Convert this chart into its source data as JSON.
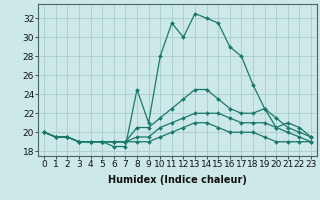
{
  "xlabel": "Humidex (Indice chaleur)",
  "ylabel": "",
  "background_color": "#cce8e8",
  "grid_color": "#aacccc",
  "line_color": "#1a7a6a",
  "x": [
    0,
    1,
    2,
    3,
    4,
    5,
    6,
    7,
    8,
    9,
    10,
    11,
    12,
    13,
    14,
    15,
    16,
    17,
    18,
    19,
    20,
    21,
    22,
    23
  ],
  "series_max": [
    20.0,
    19.5,
    19.5,
    19.0,
    19.0,
    19.0,
    18.5,
    18.5,
    24.5,
    21.0,
    28.0,
    31.5,
    30.0,
    32.5,
    32.0,
    31.5,
    29.0,
    28.0,
    25.0,
    22.5,
    20.5,
    21.0,
    20.5,
    19.5
  ],
  "series_high": [
    20.0,
    19.5,
    19.5,
    19.0,
    19.0,
    19.0,
    19.0,
    19.0,
    20.5,
    20.5,
    21.5,
    22.5,
    23.5,
    24.5,
    24.5,
    23.5,
    22.5,
    22.0,
    22.0,
    22.5,
    21.5,
    20.5,
    20.0,
    19.5
  ],
  "series_mid": [
    20.0,
    19.5,
    19.5,
    19.0,
    19.0,
    19.0,
    19.0,
    19.0,
    19.5,
    19.5,
    20.5,
    21.0,
    21.5,
    22.0,
    22.0,
    22.0,
    21.5,
    21.0,
    21.0,
    21.0,
    20.5,
    20.0,
    19.5,
    19.0
  ],
  "series_low": [
    20.0,
    19.5,
    19.5,
    19.0,
    19.0,
    19.0,
    19.0,
    19.0,
    19.0,
    19.0,
    19.5,
    20.0,
    20.5,
    21.0,
    21.0,
    20.5,
    20.0,
    20.0,
    20.0,
    19.5,
    19.0,
    19.0,
    19.0,
    19.0
  ],
  "ylim": [
    17.5,
    33.5
  ],
  "yticks": [
    18,
    20,
    22,
    24,
    26,
    28,
    30,
    32
  ],
  "xlim": [
    -0.5,
    23.5
  ],
  "xticks": [
    0,
    1,
    2,
    3,
    4,
    5,
    6,
    7,
    8,
    9,
    10,
    11,
    12,
    13,
    14,
    15,
    16,
    17,
    18,
    19,
    20,
    21,
    22,
    23
  ],
  "fontsize_label": 7,
  "fontsize_tick": 6.5
}
